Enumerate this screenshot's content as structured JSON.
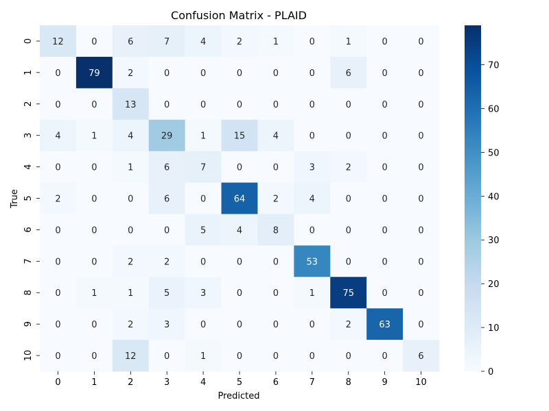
{
  "chart_data": {
    "type": "heatmap",
    "title": "Confusion Matrix - PLAID",
    "xlabel": "Predicted",
    "ylabel": "True",
    "x_categories": [
      "0",
      "1",
      "2",
      "3",
      "4",
      "5",
      "6",
      "7",
      "8",
      "9",
      "10"
    ],
    "y_categories": [
      "0",
      "1",
      "2",
      "3",
      "4",
      "5",
      "6",
      "7",
      "8",
      "9",
      "10"
    ],
    "values": [
      [
        12,
        0,
        6,
        7,
        4,
        2,
        1,
        0,
        1,
        0,
        0
      ],
      [
        0,
        79,
        2,
        0,
        0,
        0,
        0,
        0,
        6,
        0,
        0
      ],
      [
        0,
        0,
        13,
        0,
        0,
        0,
        0,
        0,
        0,
        0,
        0
      ],
      [
        4,
        1,
        4,
        29,
        1,
        15,
        4,
        0,
        0,
        0,
        0
      ],
      [
        0,
        0,
        1,
        6,
        7,
        0,
        0,
        3,
        2,
        0,
        0
      ],
      [
        2,
        0,
        0,
        6,
        0,
        64,
        2,
        4,
        0,
        0,
        0
      ],
      [
        0,
        0,
        0,
        0,
        5,
        4,
        8,
        0,
        0,
        0,
        0
      ],
      [
        0,
        0,
        2,
        2,
        0,
        0,
        0,
        53,
        0,
        0,
        0
      ],
      [
        0,
        1,
        1,
        5,
        3,
        0,
        0,
        1,
        75,
        0,
        0
      ],
      [
        0,
        0,
        2,
        3,
        0,
        0,
        0,
        0,
        2,
        63,
        0
      ],
      [
        0,
        0,
        12,
        0,
        1,
        0,
        0,
        0,
        0,
        0,
        6
      ]
    ],
    "colormap": "Blues",
    "vmin": 0,
    "vmax": 79,
    "colorbar_ticks": [
      0,
      10,
      20,
      30,
      40,
      50,
      60,
      70
    ],
    "annotated": true,
    "grid": false
  }
}
